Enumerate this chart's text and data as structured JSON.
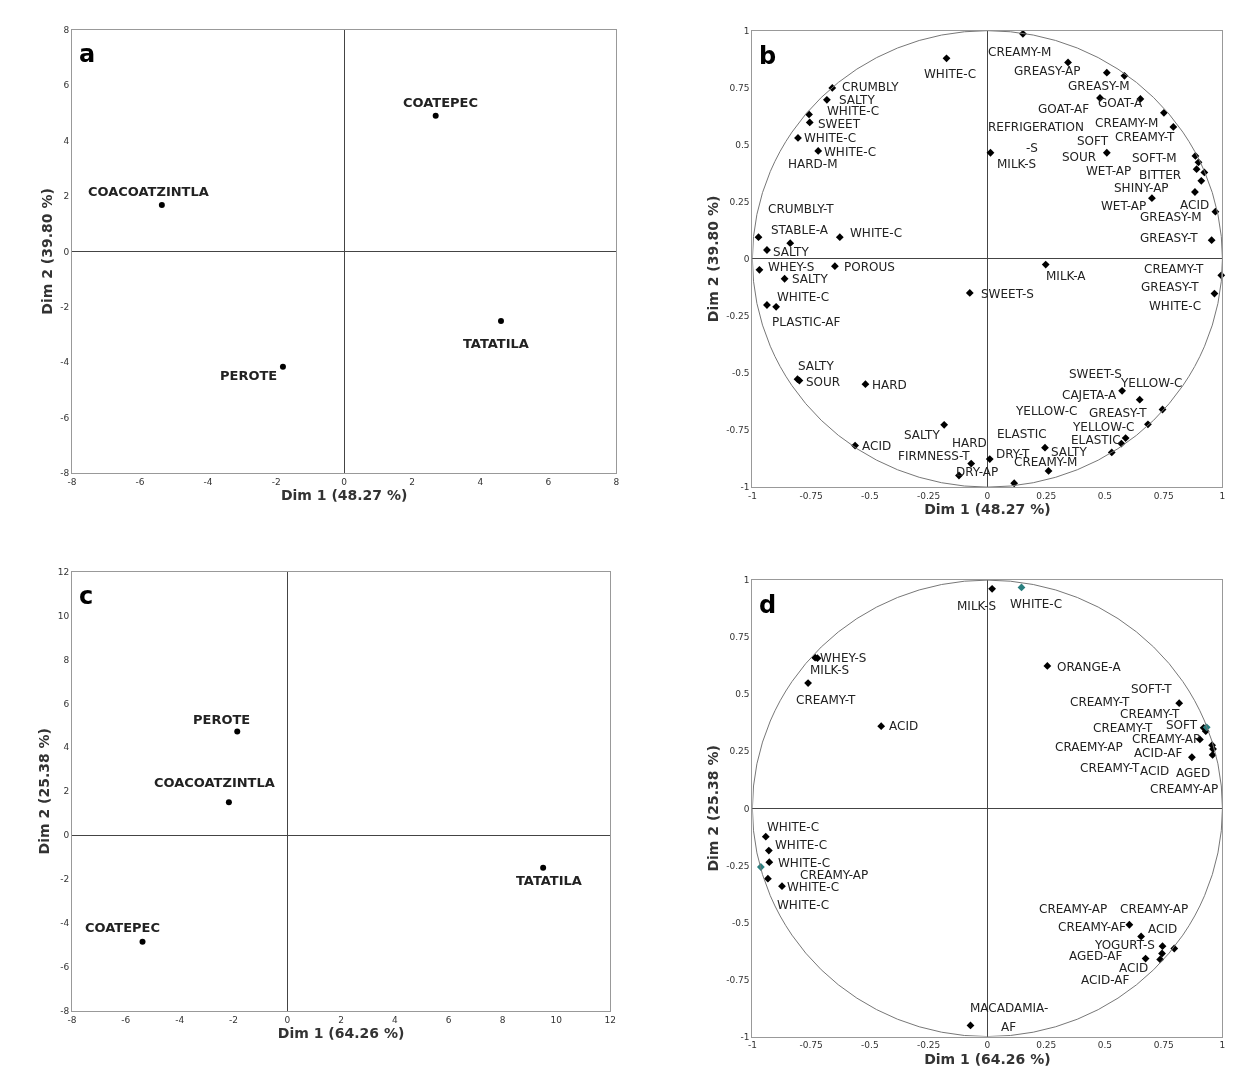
{
  "chart_data": [
    {
      "type": "scatter",
      "xlabel": "Dim 1 (48.27 %)",
      "ylabel": "Dim 2 (39.80 %)",
      "xlim": [
        -8,
        8
      ],
      "ylim": [
        -8,
        8
      ],
      "xticks": [
        -8,
        -6,
        -4,
        -2,
        0,
        2,
        4,
        6,
        8
      ],
      "yticks": [
        -8,
        -6,
        -4,
        -2,
        0,
        2,
        4,
        6,
        8
      ],
      "marker": "circle",
      "series": [
        {
          "color": "#000000",
          "x": [
            2.69,
            -5.36,
            -1.8,
            4.61
          ],
          "values": [
            4.89,
            1.67,
            -4.16,
            -2.51
          ]
        }
      ],
      "annotations": [
        "a",
        "COATEPEC",
        "COACOATZINTLA",
        "PEROTE",
        "TATATILA"
      ]
    },
    {
      "type": "scatter",
      "xlabel": "Dim 1 (48.27 %)",
      "ylabel": "Dim 2 (39.80 %)",
      "xlim": [
        -1,
        1
      ],
      "ylim": [
        -1,
        1
      ],
      "xticks": [
        -1,
        -0.75,
        -0.5,
        -0.25,
        0,
        0.25,
        0.5,
        0.75,
        1
      ],
      "yticks": [
        -1,
        -0.75,
        -0.5,
        -0.25,
        0,
        0.25,
        0.5,
        0.75,
        1
      ],
      "marker": "diamond",
      "series": [
        {
          "color": "#000000",
          "x": [
            -0.174,
            -0.66,
            -0.683,
            -0.759,
            -0.756,
            -0.806,
            -0.72,
            -0.974,
            -0.839,
            -0.938,
            -0.628,
            -0.97,
            -0.649,
            -0.863,
            -0.938,
            -0.899,
            -0.808,
            -0.8,
            -0.519,
            -0.184,
            -0.563,
            -0.069,
            -0.121,
            0.151,
            0.343,
            0.508,
            0.583,
            0.479,
            0.651,
            0.751,
            0.791,
            0.013,
            0.508,
            0.885,
            0.898,
            0.89,
            0.923,
            0.91,
            0.883,
            0.7,
            0.97,
            0.954,
            0.248,
            0.995,
            0.966,
            -0.075,
            0.573,
            0.648,
            0.745,
            0.683,
            0.588,
            0.57,
            0.529,
            0.245,
            0.01,
            0.26,
            0.114
          ],
          "values": [
            0.879,
            0.749,
            0.697,
            0.633,
            0.598,
            0.53,
            0.473,
            0.095,
            0.069,
            0.039,
            0.095,
            -0.048,
            -0.032,
            -0.087,
            -0.202,
            -0.21,
            -0.527,
            -0.533,
            -0.549,
            -0.727,
            -0.818,
            -0.897,
            -0.949,
            0.986,
            0.861,
            0.816,
            0.802,
            0.705,
            0.701,
            0.64,
            0.578,
            0.465,
            0.465,
            0.451,
            0.423,
            0.393,
            0.379,
            0.342,
            0.293,
            0.266,
            0.207,
            0.082,
            -0.025,
            -0.072,
            -0.152,
            -0.149,
            -0.578,
            -0.617,
            -0.66,
            -0.725,
            -0.785,
            -0.809,
            -0.848,
            -0.827,
            -0.877,
            -0.929,
            -0.983
          ]
        }
      ],
      "annotations": [
        "b",
        "WHITE-C",
        "CRUMBLY",
        "SALTY",
        "WHITE-C",
        "SWEET",
        "WHITE-C",
        "WHITE-C",
        "HARD-M",
        "CRUMBLY-T",
        "STABLE-A",
        "WHITE-C",
        "SALTY",
        "WHEY-S",
        "POROUS",
        "SALTY",
        "WHITE-C",
        "PLASTIC-AF",
        "SALTY",
        "SOUR",
        "HARD",
        "ACID",
        "SALTY",
        "FIRMNESS-T",
        "HARD",
        "DRY-AP",
        "CREAMY-M",
        "GREASY-AP",
        "GREASY-M",
        "GOAT-AF",
        "GOAT-A",
        "REFRIGERATION",
        "-S",
        "MILK-S",
        "CREAMY-M",
        "SOFT",
        "CREAMY-T",
        "SOUR",
        "SOFT-M",
        "WET-AP",
        "BITTER",
        "SHINY-AP",
        "WET-AP",
        "ACID",
        "GREASY-M",
        "GREASY-T",
        "MILK-A",
        "CREAMY-T",
        "SWEET-S",
        "GREASY-T",
        "WHITE-C",
        "SWEET-S",
        "YELLOW-C",
        "CAJETA-A",
        "YELLOW-C",
        "GREASY-T",
        "YELLOW-C",
        "ELASTIC",
        "ELASTIC",
        "DRY-T",
        "SALTY",
        "CREAMY-M"
      ]
    },
    {
      "type": "scatter",
      "xlabel": "Dim 1 (64.26 %)",
      "ylabel": "Dim 2 (25.38 %)",
      "xlim": [
        -8,
        12
      ],
      "ylim": [
        -8,
        12
      ],
      "xticks": [
        -8,
        -6,
        -4,
        -2,
        0,
        2,
        4,
        6,
        8,
        10,
        12
      ],
      "yticks": [
        -8,
        -6,
        -4,
        -2,
        0,
        2,
        4,
        6,
        8,
        10,
        12
      ],
      "marker": "circle",
      "series": [
        {
          "color": "#000000",
          "x": [
            -1.86,
            -2.17,
            -5.38,
            9.51
          ],
          "values": [
            4.72,
            1.5,
            -4.85,
            -1.48
          ]
        }
      ],
      "annotations": [
        "c",
        "PEROTE",
        "COACOATZINTLA",
        "COATEPEC",
        "TATATILA"
      ]
    },
    {
      "type": "scatter",
      "xlabel": "Dim 1 (64.26 %)",
      "ylabel": "Dim 2 (25.38 %)",
      "xlim": [
        -1,
        1
      ],
      "ylim": [
        -1,
        1
      ],
      "xticks": [
        -1,
        -0.75,
        -0.5,
        -0.25,
        0,
        0.25,
        0.5,
        0.75,
        1
      ],
      "yticks": [
        -1,
        -0.75,
        -0.5,
        -0.25,
        0,
        0.25,
        0.5,
        0.75,
        1
      ],
      "marker": "diamond",
      "series": [
        {
          "color": "#000000",
          "x": [
            -0.733,
            -0.723,
            -0.763,
            -0.452,
            -0.943,
            -0.93,
            -0.928,
            -0.934,
            -0.874,
            -0.072,
            0.02,
            0.255,
            0.816,
            0.92,
            0.929,
            0.904,
            0.956,
            0.96,
            0.958,
            0.87,
            0.604,
            0.654,
            0.745,
            0.795,
            0.743,
            0.735,
            0.673
          ],
          "values": [
            0.66,
            0.658,
            0.549,
            0.36,
            -0.124,
            -0.185,
            -0.236,
            -0.308,
            -0.341,
            -0.951,
            0.962,
            0.624,
            0.461,
            0.353,
            0.338,
            0.302,
            0.277,
            0.26,
            0.234,
            0.224,
            -0.51,
            -0.561,
            -0.604,
            -0.614,
            -0.636,
            -0.662,
            -0.658
          ]
        },
        {
          "color": "#2a7f7f",
          "x": [
            -0.964,
            0.145,
            0.933
          ],
          "values": [
            -0.257,
            0.968,
            0.355
          ]
        }
      ],
      "annotations": [
        "d",
        "WHEY-S",
        "MILK-S",
        "CREAMY-T",
        "ACID",
        "WHITE-C",
        "WHITE-C",
        "WHITE-C",
        "CREAMY-AP",
        "WHITE-C",
        "WHITE-C",
        "MILK-S",
        "WHITE-C",
        "ORANGE-A",
        "SOFT-T",
        "CREAMY-T",
        "CREAMY-T",
        "CREAMY-T",
        "SOFT",
        "CRAEMY-AP",
        "CREAMY-AP",
        "ACID-AF",
        "CREAMY-T",
        "ACID",
        "AGED",
        "CREAMY-AP",
        "CREAMY-AP",
        "CREAMY-AP",
        "CREAMY-AF",
        "ACID",
        "YOGURT-S",
        "AGED-AF",
        "ACID",
        "ACID-AF",
        "MACADAMIA-",
        "AF"
      ]
    }
  ]
}
